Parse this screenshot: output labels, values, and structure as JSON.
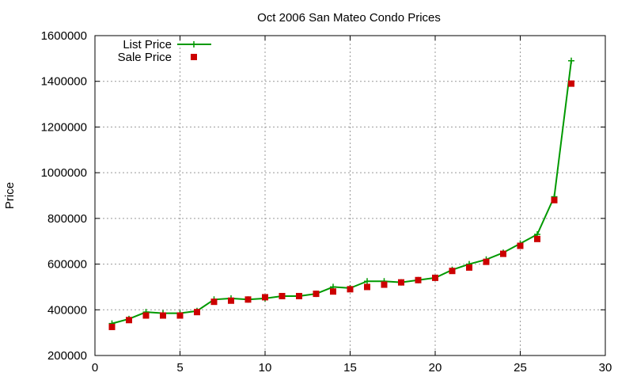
{
  "chart_data": {
    "type": "line",
    "title": "Oct 2006 San Mateo Condo Prices",
    "xlabel": "",
    "ylabel": "Price",
    "xlim": [
      0,
      30
    ],
    "ylim": [
      200000,
      1600000
    ],
    "x_ticks": [
      0,
      5,
      10,
      15,
      20,
      25,
      30
    ],
    "y_ticks": [
      200000,
      400000,
      600000,
      800000,
      1000000,
      1200000,
      1400000,
      1600000
    ],
    "grid": true,
    "legend_position": "top-left",
    "series": [
      {
        "name": "List Price",
        "style": "line-with-plus-markers",
        "color": "#009900",
        "x": [
          1,
          2,
          3,
          4,
          5,
          6,
          7,
          8,
          9,
          10,
          11,
          12,
          13,
          14,
          15,
          16,
          17,
          18,
          19,
          20,
          21,
          22,
          23,
          24,
          25,
          26,
          27,
          28
        ],
        "values": [
          340000,
          360000,
          390000,
          385000,
          385000,
          395000,
          445000,
          450000,
          445000,
          450000,
          460000,
          460000,
          470000,
          500000,
          495000,
          525000,
          525000,
          520000,
          530000,
          540000,
          575000,
          600000,
          620000,
          650000,
          690000,
          730000,
          895000,
          1490000
        ]
      },
      {
        "name": "Sale Price",
        "style": "square-markers",
        "color": "#cc0000",
        "x": [
          1,
          2,
          3,
          4,
          5,
          6,
          7,
          8,
          9,
          10,
          11,
          12,
          13,
          14,
          15,
          16,
          17,
          18,
          19,
          20,
          21,
          22,
          23,
          24,
          25,
          26,
          27,
          28
        ],
        "values": [
          325000,
          355000,
          375000,
          375000,
          375000,
          390000,
          435000,
          440000,
          445000,
          455000,
          460000,
          460000,
          470000,
          480000,
          490000,
          500000,
          510000,
          520000,
          530000,
          540000,
          570000,
          585000,
          610000,
          645000,
          680000,
          710000,
          880000,
          1390000
        ]
      }
    ]
  }
}
